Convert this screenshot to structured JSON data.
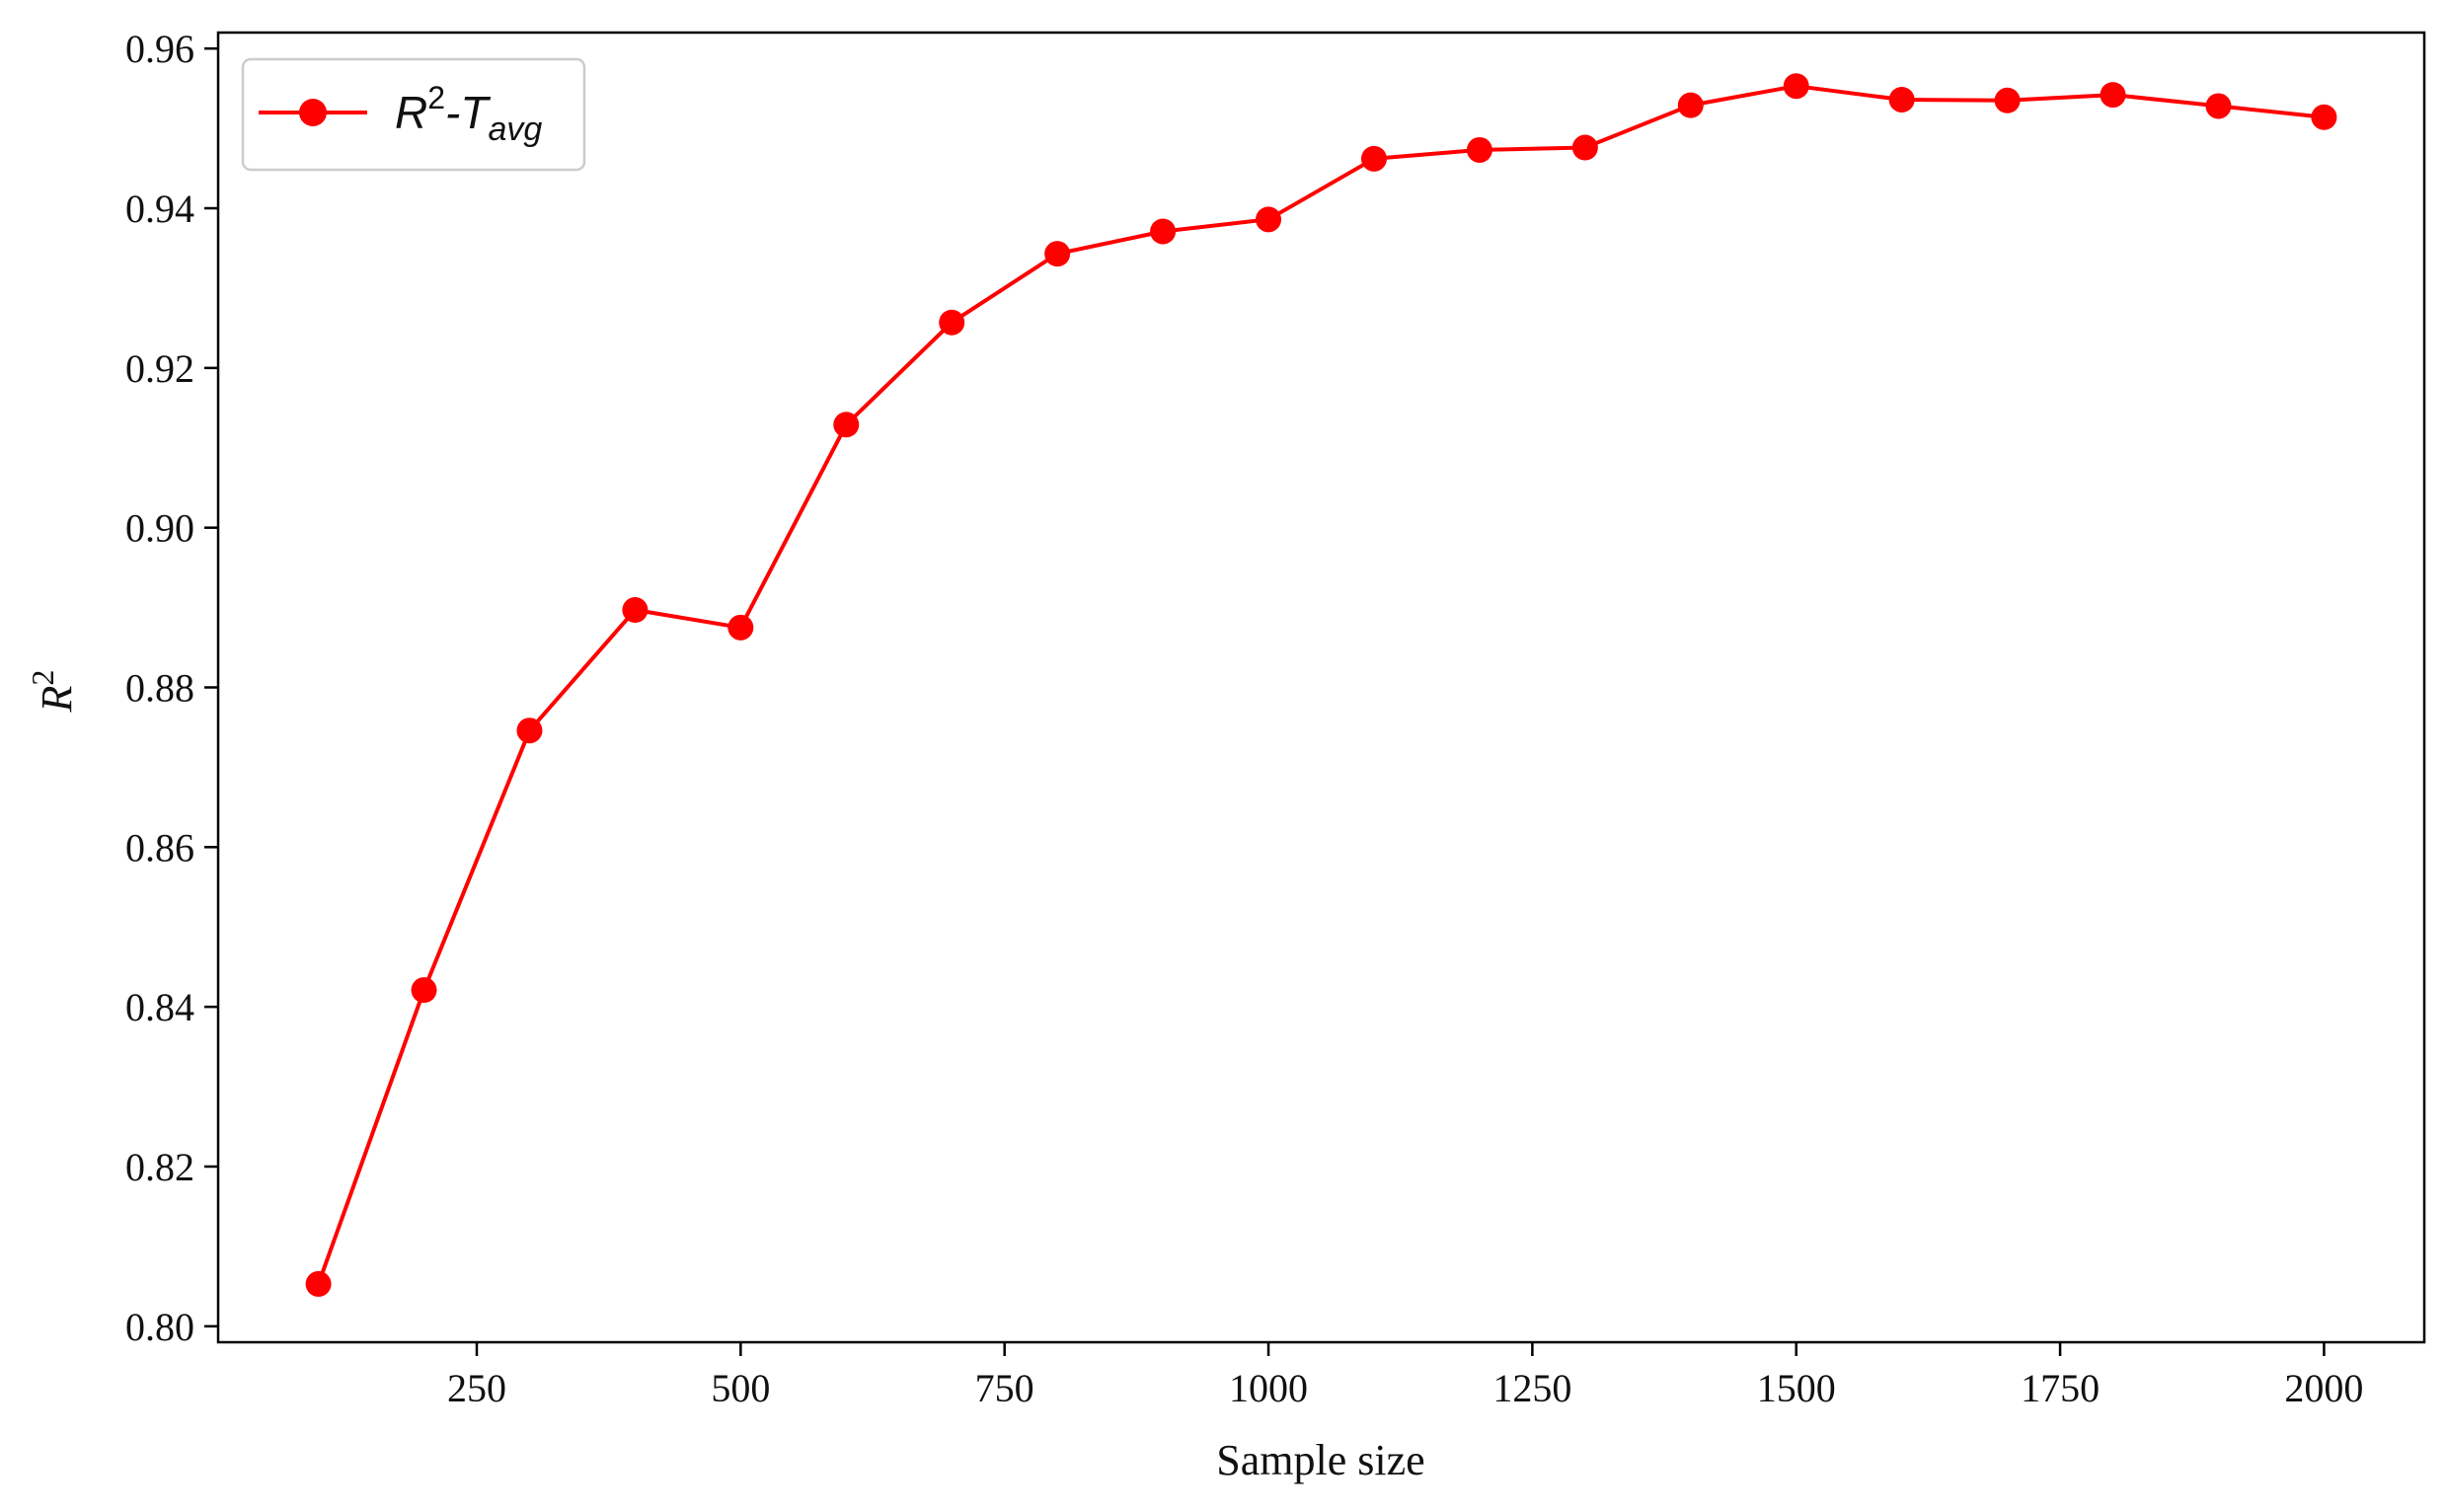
{
  "chart_data": {
    "type": "line",
    "xlabel": "Sample size",
    "ylabel": {
      "base": "R",
      "sup": "2"
    },
    "x_ticks": [
      250,
      500,
      750,
      1000,
      1250,
      1500,
      1750,
      2000
    ],
    "x_tick_labels": [
      "250",
      "500",
      "750",
      "1000",
      "1250",
      "1500",
      "1750",
      "2000"
    ],
    "y_ticks": [
      0.8,
      0.82,
      0.84,
      0.86,
      0.88,
      0.9,
      0.92,
      0.94,
      0.96
    ],
    "y_tick_labels": [
      "0.80",
      "0.82",
      "0.84",
      "0.86",
      "0.88",
      "0.90",
      "0.92",
      "0.94",
      "0.96"
    ],
    "xlim": [
      5,
      2095
    ],
    "ylim": [
      0.798,
      0.962
    ],
    "grid": false,
    "legend_position": "top-left",
    "series": [
      {
        "name": "R2-Tavg",
        "legend": {
          "base": "R",
          "sup": "2",
          "dash": "-T",
          "sub": "avg"
        },
        "color": "#ff0000",
        "marker": "circle",
        "x": [
          100,
          200,
          300,
          400,
          500,
          600,
          700,
          800,
          900,
          1000,
          1100,
          1200,
          1300,
          1400,
          1500,
          1600,
          1700,
          1800,
          1900,
          2000
        ],
        "y": [
          0.8053,
          0.8421,
          0.8746,
          0.8897,
          0.8875,
          0.9129,
          0.9257,
          0.9343,
          0.9371,
          0.9386,
          0.9462,
          0.9473,
          0.9476,
          0.9529,
          0.9553,
          0.9536,
          0.9535,
          0.9542,
          0.9528,
          0.9514
        ]
      }
    ]
  }
}
